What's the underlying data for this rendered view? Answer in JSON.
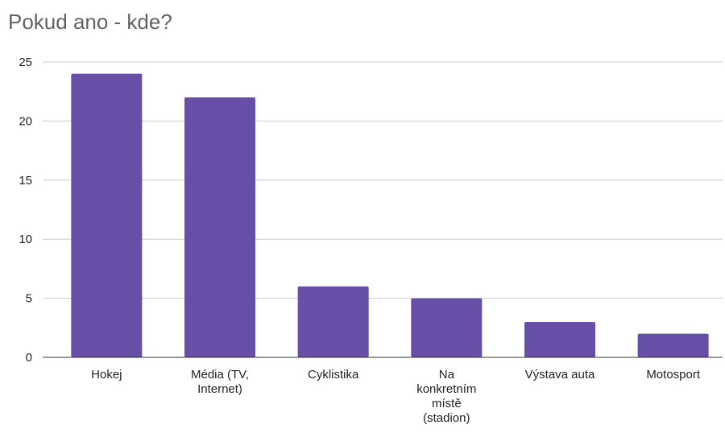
{
  "chart_data": {
    "type": "bar",
    "title": "Pokud ano - kde?",
    "categories": [
      "Hokej",
      "Média (TV, Internet)",
      "Cyklistika",
      "Na konkretním místě (stadion)",
      "Výstava auta",
      "Motosport"
    ],
    "category_lines": [
      [
        "Hokej"
      ],
      [
        "Média (TV,",
        "Internet)"
      ],
      [
        "Cyklistika"
      ],
      [
        "Na",
        "konkretním",
        "místě",
        "(stadion)"
      ],
      [
        "Výstava auta"
      ],
      [
        "Motosport"
      ]
    ],
    "values": [
      24,
      22,
      6,
      5,
      3,
      2
    ],
    "ylim": [
      0,
      25
    ],
    "yticks": [
      "0",
      "5",
      "10",
      "15",
      "20",
      "25"
    ],
    "xlabel": "",
    "ylabel": "",
    "grid": true,
    "legend": "none",
    "colors": {
      "bar": "#674ea7",
      "grid": "#cccccc",
      "axis": "#333333",
      "title": "#5f6368"
    }
  }
}
